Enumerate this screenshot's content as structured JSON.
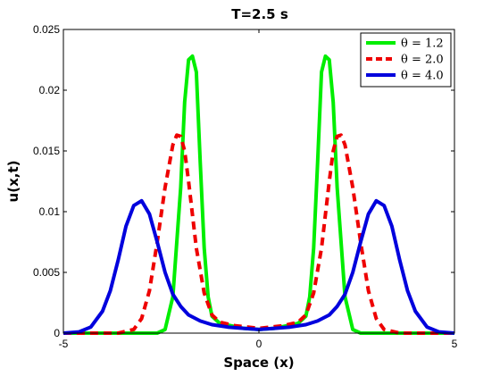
{
  "chart_data": {
    "type": "line",
    "title": "T=2.5 s",
    "xlabel": "Space (x)",
    "ylabel": "u(x,t)",
    "xlim": [
      -5,
      5
    ],
    "ylim": [
      0,
      0.025
    ],
    "xticks": [
      -5,
      0,
      5
    ],
    "yticks": [
      0,
      0.005,
      0.01,
      0.015,
      0.02,
      0.025
    ],
    "ytick_labels": [
      "0",
      "0.005",
      "0.01",
      "0.015",
      "0.02",
      "0.025"
    ],
    "grid": false,
    "legend_position": "top-right",
    "series": [
      {
        "name": "θ = 1.2",
        "color": "#00ee00",
        "dash": "solid",
        "x": [
          -5,
          -2.6,
          -2.4,
          -2.2,
          -2.0,
          -1.9,
          -1.8,
          -1.7,
          -1.6,
          -1.5,
          -1.4,
          -1.3,
          -1.2,
          -1.0,
          -0.7,
          -0.4,
          0,
          0.4,
          0.7,
          1.0,
          1.2,
          1.3,
          1.4,
          1.5,
          1.6,
          1.7,
          1.8,
          1.9,
          2.0,
          2.2,
          2.4,
          2.6,
          5
        ],
        "y": [
          0,
          0.0,
          0.0003,
          0.003,
          0.012,
          0.019,
          0.0225,
          0.0228,
          0.0215,
          0.014,
          0.007,
          0.003,
          0.0014,
          0.0008,
          0.0006,
          0.0004,
          0.0003,
          0.0004,
          0.0006,
          0.0008,
          0.0014,
          0.003,
          0.007,
          0.014,
          0.0215,
          0.0228,
          0.0225,
          0.019,
          0.012,
          0.003,
          0.0003,
          0.0,
          0
        ]
      },
      {
        "name": "θ = 2.0",
        "color": "#ee0000",
        "dash": "dashed",
        "x": [
          -5,
          -3.6,
          -3.2,
          -3.0,
          -2.8,
          -2.6,
          -2.4,
          -2.2,
          -2.1,
          -2.0,
          -1.9,
          -1.8,
          -1.6,
          -1.4,
          -1.2,
          -1.0,
          -0.6,
          0,
          0.6,
          1.0,
          1.2,
          1.4,
          1.6,
          1.8,
          1.9,
          2.0,
          2.1,
          2.2,
          2.4,
          2.6,
          2.8,
          3.0,
          3.2,
          3.6,
          5
        ],
        "y": [
          0,
          0,
          0.0003,
          0.0012,
          0.0035,
          0.0075,
          0.012,
          0.0155,
          0.0163,
          0.0162,
          0.015,
          0.0125,
          0.007,
          0.0033,
          0.0015,
          0.0009,
          0.0006,
          0.0004,
          0.0006,
          0.0009,
          0.0015,
          0.0033,
          0.007,
          0.0125,
          0.015,
          0.0162,
          0.0163,
          0.0155,
          0.012,
          0.0075,
          0.0035,
          0.0012,
          0.0003,
          0,
          0
        ]
      },
      {
        "name": "θ = 4.0",
        "color": "#0000dd",
        "dash": "solid",
        "x": [
          -5,
          -4.6,
          -4.3,
          -4.0,
          -3.8,
          -3.6,
          -3.4,
          -3.2,
          -3.0,
          -2.8,
          -2.6,
          -2.4,
          -2.2,
          -2.0,
          -1.8,
          -1.5,
          -1.2,
          -0.8,
          -0.4,
          0,
          0.4,
          0.8,
          1.2,
          1.5,
          1.8,
          2.0,
          2.2,
          2.4,
          2.6,
          2.8,
          3.0,
          3.2,
          3.4,
          3.6,
          3.8,
          4.0,
          4.3,
          4.6,
          5
        ],
        "y": [
          0,
          0.0001,
          0.0005,
          0.0018,
          0.0035,
          0.006,
          0.0088,
          0.0105,
          0.0109,
          0.0098,
          0.0075,
          0.005,
          0.0032,
          0.0022,
          0.0015,
          0.001,
          0.0007,
          0.0005,
          0.0004,
          0.0003,
          0.0004,
          0.0005,
          0.0007,
          0.001,
          0.0015,
          0.0022,
          0.0032,
          0.005,
          0.0075,
          0.0098,
          0.0109,
          0.0105,
          0.0088,
          0.006,
          0.0035,
          0.0018,
          0.0005,
          0.0001,
          0
        ]
      }
    ]
  }
}
